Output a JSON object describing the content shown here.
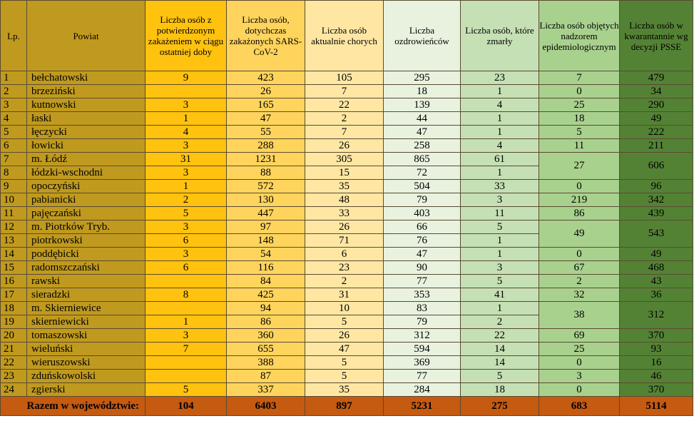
{
  "headers": {
    "lp": "Lp.",
    "powiat": "Powiat",
    "col1": "Liczba osób z potwierdzonym zakażeniem w ciągu ostatniej doby",
    "col2": "Liczba osób, dotychczas zakażonych SARS-CoV-2",
    "col3": "Liczba osób aktualnie chorych",
    "col4": "Liczba ozdrowieńców",
    "col5": "Liczba osób, które zmarły",
    "col6": "Liczba osób objętych nadzorem epidemiologicznym",
    "col7": "Liczba osób w kwarantannie wg decyzji PSSE"
  },
  "rows": [
    {
      "lp": "1",
      "name": "bełchatowski",
      "daily": "9",
      "total": "423",
      "sick": "105",
      "recovered": "295",
      "deaths": "23"
    },
    {
      "lp": "2",
      "name": "brzeziński",
      "daily": "",
      "total": "26",
      "sick": "7",
      "recovered": "18",
      "deaths": "1"
    },
    {
      "lp": "3",
      "name": "kutnowski",
      "daily": "3",
      "total": "165",
      "sick": "22",
      "recovered": "139",
      "deaths": "4"
    },
    {
      "lp": "4",
      "name": "łaski",
      "daily": "1",
      "total": "47",
      "sick": "2",
      "recovered": "44",
      "deaths": "1"
    },
    {
      "lp": "5",
      "name": "łęczycki",
      "daily": "4",
      "total": "55",
      "sick": "7",
      "recovered": "47",
      "deaths": "1"
    },
    {
      "lp": "6",
      "name": "łowicki",
      "daily": "3",
      "total": "288",
      "sick": "26",
      "recovered": "258",
      "deaths": "4"
    },
    {
      "lp": "7",
      "name": "m. Łódź",
      "daily": "31",
      "total": "1231",
      "sick": "305",
      "recovered": "865",
      "deaths": "61"
    },
    {
      "lp": "8",
      "name": "łódzki-wschodni",
      "daily": "3",
      "total": "88",
      "sick": "15",
      "recovered": "72",
      "deaths": "1"
    },
    {
      "lp": "9",
      "name": "opoczyński",
      "daily": "1",
      "total": "572",
      "sick": "35",
      "recovered": "504",
      "deaths": "33"
    },
    {
      "lp": "10",
      "name": "pabianicki",
      "daily": "2",
      "total": "130",
      "sick": "48",
      "recovered": "79",
      "deaths": "3"
    },
    {
      "lp": "11",
      "name": "pajęczański",
      "daily": "5",
      "total": "447",
      "sick": "33",
      "recovered": "403",
      "deaths": "11"
    },
    {
      "lp": "12",
      "name": "m. Piotrków Tryb.",
      "daily": "3",
      "total": "97",
      "sick": "26",
      "recovered": "66",
      "deaths": "5"
    },
    {
      "lp": "13",
      "name": "piotrkowski",
      "daily": "6",
      "total": "148",
      "sick": "71",
      "recovered": "76",
      "deaths": "1"
    },
    {
      "lp": "14",
      "name": "poddębicki",
      "daily": "3",
      "total": "54",
      "sick": "6",
      "recovered": "47",
      "deaths": "1"
    },
    {
      "lp": "15",
      "name": "radomszczański",
      "daily": "6",
      "total": "116",
      "sick": "23",
      "recovered": "90",
      "deaths": "3"
    },
    {
      "lp": "16",
      "name": "rawski",
      "daily": "",
      "total": "84",
      "sick": "2",
      "recovered": "77",
      "deaths": "5"
    },
    {
      "lp": "17",
      "name": "sieradzki",
      "daily": "8",
      "total": "425",
      "sick": "31",
      "recovered": "353",
      "deaths": "41"
    },
    {
      "lp": "18",
      "name": "m. Skierniewice",
      "daily": "",
      "total": "94",
      "sick": "10",
      "recovered": "83",
      "deaths": "1"
    },
    {
      "lp": "19",
      "name": "skierniewicki",
      "daily": "1",
      "total": "86",
      "sick": "5",
      "recovered": "79",
      "deaths": "2"
    },
    {
      "lp": "20",
      "name": "tomaszowski",
      "daily": "3",
      "total": "360",
      "sick": "26",
      "recovered": "312",
      "deaths": "22"
    },
    {
      "lp": "21",
      "name": "wieluński",
      "daily": "7",
      "total": "655",
      "sick": "47",
      "recovered": "594",
      "deaths": "14"
    },
    {
      "lp": "22",
      "name": "wieruszowski",
      "daily": "",
      "total": "388",
      "sick": "5",
      "recovered": "369",
      "deaths": "14"
    },
    {
      "lp": "23",
      "name": "zduńskowolski",
      "daily": "",
      "total": "87",
      "sick": "5",
      "recovered": "77",
      "deaths": "5"
    },
    {
      "lp": "24",
      "name": "zgierski",
      "daily": "5",
      "total": "337",
      "sick": "35",
      "recovered": "284",
      "deaths": "18"
    }
  ],
  "supervision": {
    "r1": "7",
    "r2": "0",
    "r3": "25",
    "r4": "18",
    "r5": "5",
    "r6": "11",
    "r7_8": "27",
    "r9": "0",
    "r10": "219",
    "r11": "86",
    "r12_13": "49",
    "r14": "0",
    "r15": "67",
    "r16": "2",
    "r17": "32",
    "r18_19": "38",
    "r20": "69",
    "r21": "25",
    "r22": "0",
    "r23": "3",
    "r24": "0"
  },
  "quarantine": {
    "r1": "479",
    "r2": "34",
    "r3": "290",
    "r4": "49",
    "r5": "222",
    "r6": "211",
    "r7_8": "606",
    "r9": "96",
    "r10": "342",
    "r11": "439",
    "r12_13": "543",
    "r14": "49",
    "r15": "468",
    "r16": "43",
    "r17": "36",
    "r18_19": "312",
    "r20": "370",
    "r21": "93",
    "r22": "16",
    "r23": "46",
    "r24": "370"
  },
  "totals": {
    "label": "Razem w województwie:",
    "daily": "104",
    "total": "6403",
    "sick": "897",
    "recovered": "5231",
    "deaths": "275",
    "supervision": "683",
    "quarantine": "5114"
  },
  "colors": {
    "lp_name": "#c09a1e",
    "daily": "#ffc20e",
    "total": "#ffd45c",
    "sick": "#ffe7a3",
    "recovered": "#e8f2df",
    "deaths": "#c5e0b4",
    "supervision": "#a9d18e",
    "quarantine": "#548235",
    "footer": "#c55a11"
  }
}
